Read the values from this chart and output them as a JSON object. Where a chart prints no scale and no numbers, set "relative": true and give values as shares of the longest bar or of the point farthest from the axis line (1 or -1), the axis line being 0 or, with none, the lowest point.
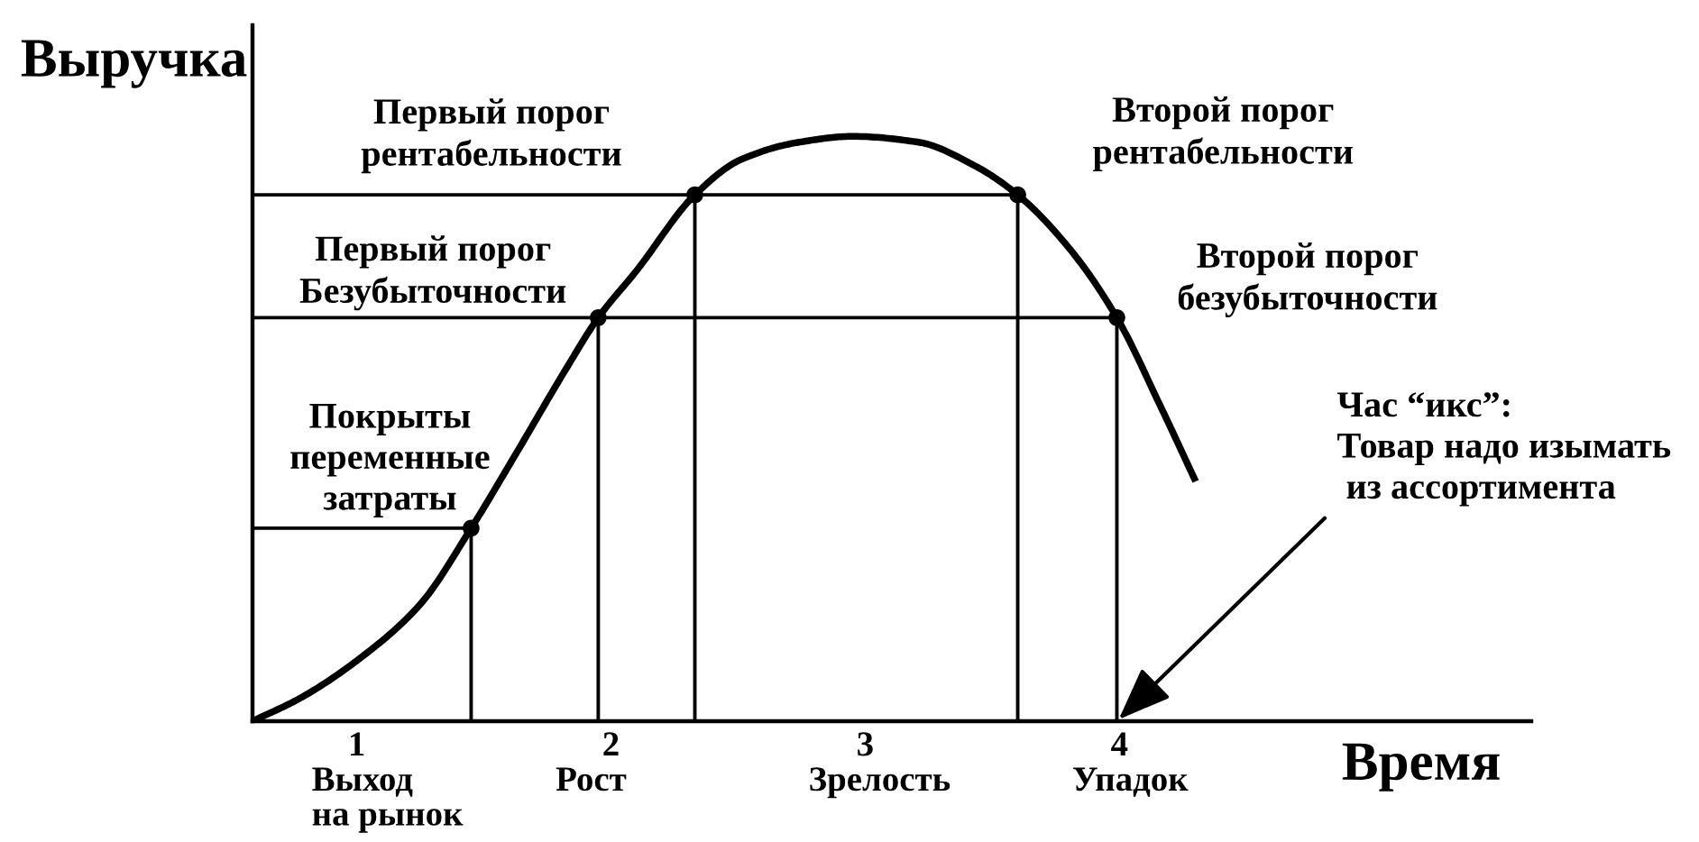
{
  "chart_data": {
    "type": "line",
    "relative": true,
    "xlabel": "Время",
    "ylabel": "Выручка",
    "xlim": [
      0.59,
      5.62
    ],
    "xticks": [
      1,
      2,
      3,
      4
    ],
    "series": [
      {
        "color": "#000000",
        "x": [
          0.59,
          0.78,
          1.02,
          1.25,
          1.45,
          1.63,
          1.82,
          1.95,
          2.1,
          2.33,
          2.51,
          2.74,
          2.95,
          3.21,
          3.43,
          3.6,
          3.8,
          3.99,
          4.16,
          4.3
        ],
        "values": [
          0,
          0.04,
          0.11,
          0.2,
          0.33,
          0.46,
          0.6,
          0.69,
          0.77,
          0.9,
          0.96,
          0.99,
          1,
          0.99,
          0.95,
          0.9,
          0.81,
          0.69,
          0.54,
          0.41
        ]
      },
      {
        "color": "#000000",
        "x": [
          0.59,
          1.45,
          1.45
        ],
        "values": [
          0.33,
          0.33,
          0
        ]
      },
      {
        "color": "#000000",
        "x": [
          0.59,
          3.99,
          3.99
        ],
        "values": [
          0.69,
          0.69,
          0
        ]
      },
      {
        "color": "#000000",
        "x": [
          1.95,
          1.95
        ],
        "values": [
          0.69,
          0
        ]
      },
      {
        "color": "#000000",
        "x": [
          0.59,
          3.6,
          3.6
        ],
        "values": [
          0.9,
          0.9,
          0
        ]
      },
      {
        "color": "#000000",
        "x": [
          2.33,
          2.33
        ],
        "values": [
          0.9,
          0
        ]
      },
      {
        "type": "scatter",
        "color": "#000000",
        "marker": "circle",
        "x": [
          1.45,
          1.95,
          2.33,
          3.6,
          3.99
        ],
        "values": [
          0.33,
          0.69,
          0.9,
          0.9,
          0.69
        ]
      }
    ],
    "annotations": [
      {
        "text": "Покрыты\nпеременные\nзатраты",
        "x": 1.45,
        "y": 0.33
      },
      {
        "text": "Первый порог\nБезубыточности",
        "x": 1.3,
        "y": 0.69
      },
      {
        "text": "Первый порог\nрентабельности",
        "x": 1.53,
        "y": 0.9
      },
      "Второй порог\nрентабельности",
      "Второй порог\nбезубыточности",
      {
        "text": "Час “икс”:\nТовар надо изымать\n из ассортимента",
        "x": 3.99,
        "y": 0
      },
      "Выход\nна рынок",
      "Рост",
      "Зрелость",
      "Упадок"
    ]
  }
}
